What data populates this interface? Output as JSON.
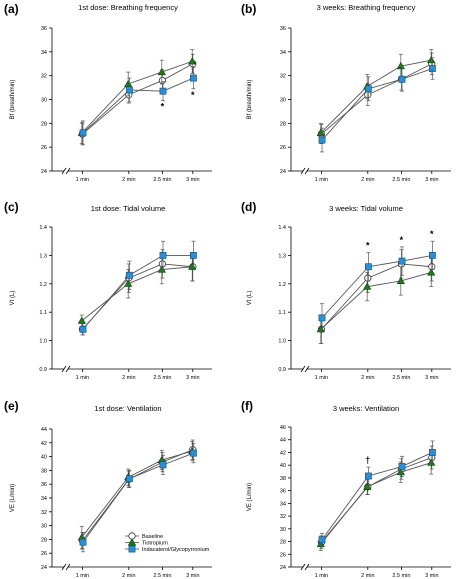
{
  "colors": {
    "baseline": "#ffffff",
    "tiotropium": "#1f7a1f",
    "indacaterol": "#2a8fd6",
    "line": "#555555"
  },
  "legend": [
    "Baseline",
    "Tiotropium",
    "Indacaterol/Glycopyrronium"
  ],
  "chart_data": [
    {
      "type": "line",
      "panel": "(a)",
      "title": "1st dose: Breathing frequency",
      "ylabel": "Bf (breath/min)",
      "x": [
        "1 min",
        "2 min",
        "2.5 min",
        "3 min"
      ],
      "ylim": [
        24,
        36
      ],
      "yticks": [
        "24",
        "26",
        "28",
        "30",
        "32",
        "34",
        "36"
      ],
      "series": [
        {
          "name": "Baseline",
          "values": [
            27.1,
            30.4,
            31.6,
            33.0
          ],
          "errors": [
            0.9,
            0.7,
            0.9,
            0.8
          ]
        },
        {
          "name": "Tiotropium",
          "values": [
            27.2,
            31.3,
            32.3,
            33.2
          ],
          "errors": [
            0.9,
            1.0,
            1.0,
            1.0
          ]
        },
        {
          "name": "Indacaterol/Glycopyrronium",
          "values": [
            27.2,
            30.8,
            30.7,
            31.8
          ],
          "errors": [
            1.0,
            1.0,
            0.8,
            0.9
          ]
        }
      ],
      "annotations": [
        {
          "x": "2.5 min",
          "text": "*"
        },
        {
          "x": "3 min",
          "text": "*"
        }
      ]
    },
    {
      "type": "line",
      "panel": "(b)",
      "title": "3 weeks: Breathing frequency",
      "ylabel": "Bf (breath/min)",
      "x": [
        "1 min",
        "2 min",
        "2.5 min",
        "3 min"
      ],
      "ylim": [
        24,
        36
      ],
      "yticks": [
        "24",
        "26",
        "28",
        "30",
        "32",
        "34",
        "36"
      ],
      "series": [
        {
          "name": "Baseline",
          "values": [
            27.1,
            30.4,
            31.7,
            33.0
          ],
          "errors": [
            0.8,
            0.9,
            0.9,
            0.9
          ]
        },
        {
          "name": "Tiotropium",
          "values": [
            27.2,
            31.1,
            32.8,
            33.3
          ],
          "errors": [
            0.8,
            1.0,
            1.0,
            0.9
          ]
        },
        {
          "name": "Indacaterol/Glycopyrronium",
          "values": [
            26.6,
            30.9,
            31.7,
            32.6
          ],
          "errors": [
            1.0,
            1.0,
            1.0,
            0.9
          ]
        }
      ],
      "annotations": []
    },
    {
      "type": "line",
      "panel": "(c)",
      "title": "1st dose: Tidal volume",
      "ylabel": "Vt (L)",
      "x": [
        "1 min",
        "2 min",
        "2.5 min",
        "3 min"
      ],
      "ylim": [
        0.9,
        1.4
      ],
      "yticks": [
        "0.9",
        "1.0",
        "1.1",
        "1.2",
        "1.3",
        "1.4"
      ],
      "series": [
        {
          "name": "Baseline",
          "values": [
            1.04,
            1.22,
            1.27,
            1.26
          ],
          "errors": [
            0.02,
            0.05,
            0.05,
            0.05
          ]
        },
        {
          "name": "Tiotropium",
          "values": [
            1.07,
            1.2,
            1.25,
            1.26
          ],
          "errors": [
            0.02,
            0.05,
            0.05,
            0.05
          ]
        },
        {
          "name": "Indacaterol/Glycopyrronium",
          "values": [
            1.04,
            1.23,
            1.3,
            1.3
          ],
          "errors": [
            0.02,
            0.05,
            0.05,
            0.05
          ]
        }
      ],
      "annotations": []
    },
    {
      "type": "line",
      "panel": "(d)",
      "title": "3 weeks: Tidal volume",
      "ylabel": "Vt (L)",
      "x": [
        "1 min",
        "2 min",
        "2.5 min",
        "3 min"
      ],
      "ylim": [
        0.9,
        1.4
      ],
      "yticks": [
        "0.9",
        "1.0",
        "1.1",
        "1.2",
        "1.3",
        "1.4"
      ],
      "series": [
        {
          "name": "Baseline",
          "values": [
            1.04,
            1.22,
            1.27,
            1.26
          ],
          "errors": [
            0.05,
            0.05,
            0.05,
            0.05
          ]
        },
        {
          "name": "Tiotropium",
          "values": [
            1.04,
            1.19,
            1.21,
            1.24
          ],
          "errors": [
            0.05,
            0.05,
            0.05,
            0.05
          ]
        },
        {
          "name": "Indacaterol/Glycopyrronium",
          "values": [
            1.08,
            1.26,
            1.28,
            1.3
          ],
          "errors": [
            0.05,
            0.05,
            0.05,
            0.05
          ]
        }
      ],
      "annotations": [
        {
          "x": "2 min",
          "text": "*"
        },
        {
          "x": "2.5 min",
          "text": "*"
        },
        {
          "x": "3 min",
          "text": "*"
        }
      ]
    },
    {
      "type": "line",
      "panel": "(e)",
      "title": "1st dose: Ventilation",
      "ylabel": "VE (L/min)",
      "x": [
        "1 min",
        "2 min",
        "2.5 min",
        "3 min"
      ],
      "ylim": [
        24,
        44
      ],
      "yticks": [
        "24",
        "26",
        "28",
        "30",
        "32",
        "34",
        "36",
        "38",
        "40",
        "42",
        "44"
      ],
      "series": [
        {
          "name": "Baseline",
          "values": [
            27.8,
            36.7,
            39.2,
            41.0
          ],
          "errors": [
            1.2,
            1.2,
            1.4,
            1.4
          ]
        },
        {
          "name": "Tiotropium",
          "values": [
            28.3,
            37.0,
            39.5,
            40.8
          ],
          "errors": [
            1.6,
            1.2,
            1.4,
            1.4
          ]
        },
        {
          "name": "Indacaterol/Glycopyrronium",
          "values": [
            27.6,
            36.8,
            38.8,
            40.5
          ],
          "errors": [
            1.4,
            1.2,
            1.4,
            1.4
          ]
        }
      ],
      "annotations": []
    },
    {
      "type": "line",
      "panel": "(f)",
      "title": "3 weeks: Ventilation",
      "ylabel": "VE (L/min)",
      "x": [
        "1 min",
        "2 min",
        "2.5 min",
        "3 min"
      ],
      "ylim": [
        24,
        46
      ],
      "yticks": [
        "24",
        "26",
        "28",
        "30",
        "32",
        "34",
        "36",
        "38",
        "40",
        "42",
        "44",
        "46"
      ],
      "series": [
        {
          "name": "Baseline",
          "values": [
            27.9,
            36.6,
            39.4,
            41.2
          ],
          "errors": [
            1.0,
            1.2,
            1.6,
            1.8
          ]
        },
        {
          "name": "Tiotropium",
          "values": [
            27.6,
            36.6,
            38.9,
            40.4
          ],
          "errors": [
            1.0,
            1.2,
            1.6,
            1.8
          ]
        },
        {
          "name": "Indacaterol/Glycopyrronium",
          "values": [
            28.3,
            38.3,
            39.8,
            42.0
          ],
          "errors": [
            1.0,
            1.4,
            1.6,
            1.8
          ]
        }
      ],
      "annotations": [
        {
          "x": "2 min",
          "text": "†"
        }
      ]
    }
  ]
}
